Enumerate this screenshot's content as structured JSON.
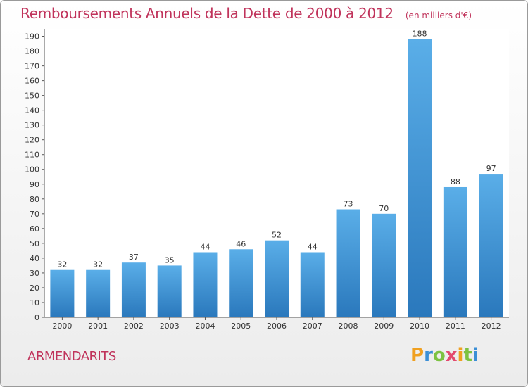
{
  "header": {
    "title": "Remboursements Annuels de la Dette de 2000 à 2012",
    "unit": "(en milliers d'€)"
  },
  "footer": {
    "place": "ARMENDARITS",
    "logo": "Proxiti"
  },
  "colors": {
    "accent": "#c0335b",
    "bar_top": "#5aaee8",
    "bar_bottom": "#2a78bc"
  },
  "chart_data": {
    "type": "bar",
    "title": "Remboursements Annuels de la Dette de 2000 à 2012",
    "xlabel": "",
    "ylabel": "",
    "categories": [
      "2000",
      "2001",
      "2002",
      "2003",
      "2004",
      "2005",
      "2006",
      "2007",
      "2008",
      "2009",
      "2010",
      "2011",
      "2012"
    ],
    "values": [
      32,
      32,
      37,
      35,
      44,
      46,
      52,
      44,
      73,
      70,
      188,
      88,
      97
    ],
    "ylim": [
      0,
      195
    ],
    "yticks": [
      0,
      10,
      20,
      30,
      40,
      50,
      60,
      70,
      80,
      90,
      100,
      110,
      120,
      130,
      140,
      150,
      160,
      170,
      180,
      190
    ],
    "grid": false,
    "legend": "none"
  }
}
